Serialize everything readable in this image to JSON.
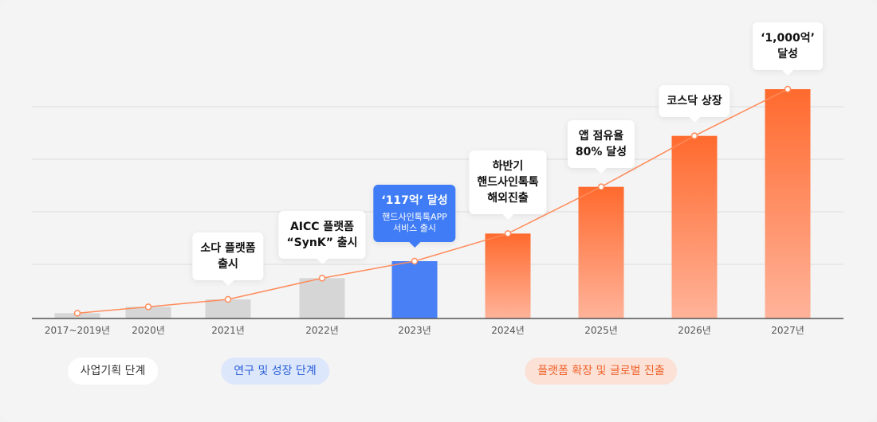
{
  "chart_data": {
    "type": "bar",
    "categories": [
      "2017~2019년",
      "2020년",
      "2021년",
      "2022년",
      "2023년",
      "2024년",
      "2025년",
      "2026년",
      "2027년"
    ],
    "values": [
      2.5,
      5.5,
      9,
      19,
      27,
      40,
      62,
      86,
      108
    ],
    "ylim": [
      0,
      120
    ],
    "grid": true,
    "title": "",
    "xlabel": "",
    "ylabel": "",
    "trend_line": true,
    "bar_colors": [
      "#d6d6d6",
      "#d6d6d6",
      "#d6d6d6",
      "#d6d6d6",
      "#4a80f6",
      "#ff6a2e",
      "#ff6a2e",
      "#ff6a2e",
      "#ff6a2e"
    ],
    "annotations": [
      {
        "category": "2021년",
        "lines": [
          "소다 플랫폼",
          "출시"
        ],
        "style": "white"
      },
      {
        "category": "2022년",
        "lines": [
          "AICC 플랫폼",
          "“SynK” 출시"
        ],
        "style": "white"
      },
      {
        "category": "2023년",
        "lines": [
          "‘117억’ 달성"
        ],
        "sub_lines": [
          "핸드사인톡톡APP",
          "서비스 출시"
        ],
        "style": "blue"
      },
      {
        "category": "2024년",
        "lines": [
          "하반기",
          "핸드사인톡톡",
          "해외진출"
        ],
        "style": "white"
      },
      {
        "category": "2025년",
        "lines": [
          "앱 점유율",
          "80% 달성"
        ],
        "style": "white"
      },
      {
        "category": "2026년",
        "lines": [
          "코스닥 상장"
        ],
        "style": "white"
      },
      {
        "category": "2027년",
        "lines": [
          "‘1,000억’",
          "달성"
        ],
        "style": "white"
      }
    ]
  },
  "stages": [
    {
      "label": "사업기획 단계",
      "style": "grey",
      "categories": [
        "2017~2019년",
        "2020년"
      ]
    },
    {
      "label": "연구 및 성장 단계",
      "style": "blue",
      "categories": [
        "2021년",
        "2022년"
      ]
    },
    {
      "label": "플랫폼 확장 및 글로벌 진출",
      "style": "orange",
      "categories": [
        "2024년",
        "2026년"
      ]
    }
  ],
  "colors": {
    "bar_inactive": "#d6d6d6",
    "bar_current": "#4a80f6",
    "bar_future_top": "#ff6a2e",
    "bar_future_bottom": "#ffb39a",
    "trend_line": "#ff8b5a",
    "axis": "#555555",
    "grid": "#dddddd"
  }
}
